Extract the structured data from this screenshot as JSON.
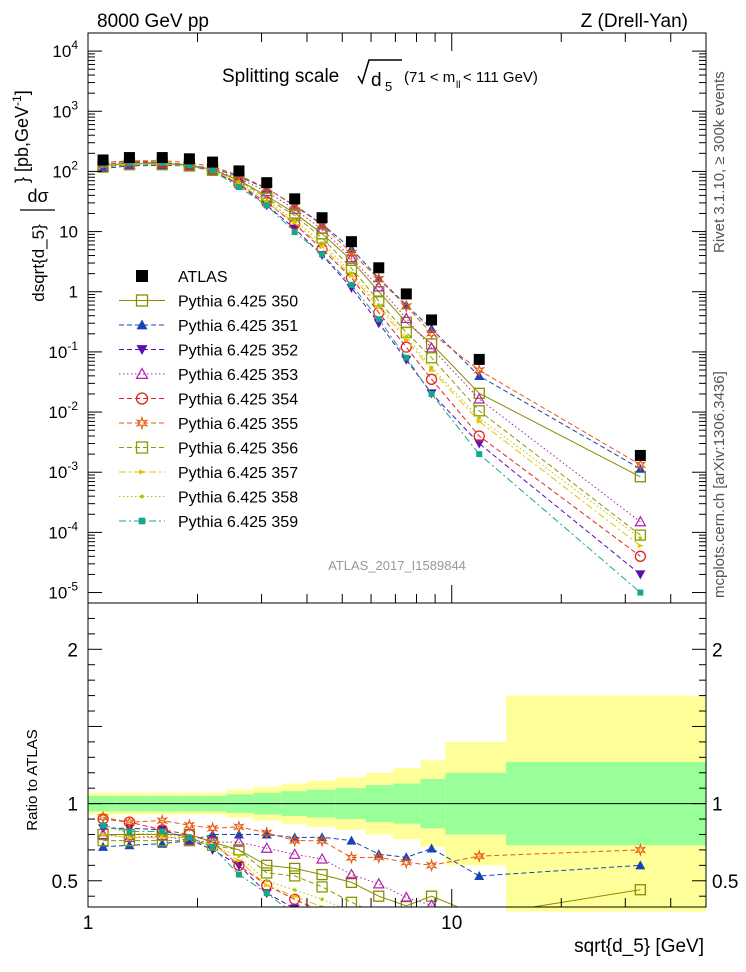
{
  "header": {
    "left": "8000 GeV pp",
    "right": "Z (Drell-Yan)"
  },
  "side_labels": {
    "rivet": "Rivet 3.1.10, ≥ 300k events",
    "mcplots": "mcplots.cern.ch [arXiv:1306.3436]"
  },
  "chart_data": {
    "type": "scatter",
    "title": "Splitting scale √d_5 (71 < m_ll < 111 GeV)",
    "title_main": "Splitting scale",
    "title_sym": "d",
    "title_sub": "5",
    "title_cut": "(71 < m",
    "title_cut_sub": "ll",
    "title_cut_end": " < 111 GeV)",
    "analysis_id": "ATLAS_2017_I1589844",
    "xlabel": "sqrt{d_5} [GeV]",
    "ylabel": "dσ/dsqrt{d_5} [pb,GeV⁻¹]",
    "ylabel_num": "dσ",
    "ylabel_den": "dsqrt{d_5}",
    "ylabel_unit": "} [pb,GeV",
    "ylabel_unit_exp": "-1",
    "ylabel_unit_end": "]",
    "ratio_ylabel": "Ratio to ATLAS",
    "xscale": "log",
    "xlim": [
      1,
      50
    ],
    "yscale": "log",
    "ylim": [
      6.7e-06,
      20000
    ],
    "ratio_ylim": [
      0.33,
      2.3
    ],
    "x_tick_labels": [
      "1",
      "10"
    ],
    "y_tick_labels": [
      "10^-5",
      "10^-4",
      "10^-3",
      "10^-2",
      "10^-1",
      "1",
      "10",
      "10^2",
      "10^3",
      "10^4"
    ],
    "ratio_tick_labels": [
      "0.5",
      "1",
      "2"
    ],
    "legend_position": "mid-left",
    "x": [
      1.1,
      1.3,
      1.6,
      1.9,
      2.2,
      2.6,
      3.1,
      3.7,
      4.4,
      5.3,
      6.3,
      7.5,
      8.8,
      11.9,
      33.0
    ],
    "bin_edges": [
      1.0,
      1.2,
      1.45,
      1.75,
      2.05,
      2.4,
      2.85,
      3.4,
      4.0,
      4.8,
      5.8,
      6.9,
      8.2,
      9.6,
      14.1,
      50.0
    ],
    "band_inner": [
      0.05,
      0.05,
      0.05,
      0.05,
      0.05,
      0.06,
      0.07,
      0.08,
      0.09,
      0.1,
      0.12,
      0.13,
      0.16,
      0.2,
      0.27
    ],
    "band_outer": [
      0.07,
      0.07,
      0.07,
      0.07,
      0.07,
      0.09,
      0.11,
      0.13,
      0.15,
      0.17,
      0.2,
      0.23,
      0.28,
      0.4,
      0.7
    ],
    "series": [
      {
        "name": "ATLAS",
        "color": "#000000",
        "marker": "square-filled",
        "dash": "none",
        "values": [
          155,
          170,
          170,
          162,
          143,
          102,
          65,
          35,
          17,
          6.8,
          2.5,
          0.92,
          0.34,
          0.075,
          0.0019
        ]
      },
      {
        "name": "Pythia 6.425 350",
        "color": "#8b8b00",
        "marker": "square-open",
        "dash": "solid",
        "values": [
          124.0,
          136.0,
          136.0,
          129.6,
          107.3,
          71.4,
          39.0,
          20.3,
          9.18,
          3.33,
          1.0,
          0.31,
          0.136,
          0.0205,
          0.00084
        ]
      },
      {
        "name": "Pythia 6.425 351",
        "color": "#1844b5",
        "marker": "triangle-up-filled",
        "dash": "dashed",
        "values": [
          111.6,
          124.1,
          125.8,
          123.1,
          114.4,
          81.6,
          52.0,
          27.3,
          13.3,
          5.17,
          1.68,
          0.6,
          0.241,
          0.0398,
          0.00114
        ]
      },
      {
        "name": "Pythia 6.425 352",
        "color": "#5a0fb0",
        "marker": "triangle-down-filled",
        "dash": "dashed",
        "values": [
          130.2,
          142.8,
          141.1,
          124.7,
          100.1,
          61.2,
          27.3,
          11.2,
          4.08,
          1.16,
          0.3,
          0.074,
          0.0204,
          0.003,
          2e-05
        ]
      },
      {
        "name": "Pythia 6.425 353",
        "color": "#b01fb0",
        "marker": "triangle-up-open",
        "dash": "dotted",
        "values": [
          124.0,
          132.6,
          134.3,
          123.1,
          107.3,
          76.5,
          46.2,
          23.5,
          10.9,
          3.67,
          1.2,
          0.36,
          0.116,
          0.0165,
          0.00015
        ]
      },
      {
        "name": "Pythia 6.425 354",
        "color": "#e0231f",
        "marker": "circle-open",
        "dash": "dashed",
        "values": [
          139.5,
          149.6,
          141.1,
          129.6,
          107.3,
          61.2,
          30.6,
          13.3,
          5.1,
          1.7,
          0.45,
          0.12,
          0.035,
          0.004,
          4e-05
        ]
      },
      {
        "name": "Pythia 6.425 355",
        "color": "#e8590c",
        "marker": "star-open",
        "dash": "dashed",
        "values": [
          141.1,
          149.6,
          151.3,
          139.3,
          120.1,
          86.7,
          52.7,
          26.6,
          12.9,
          4.42,
          1.63,
          0.57,
          0.204,
          0.0495,
          0.00133
        ]
      },
      {
        "name": "Pythia 6.425 356",
        "color": "#8b9a00",
        "marker": "square-open",
        "dash": "dashed",
        "values": [
          117.8,
          129.2,
          129.2,
          123.1,
          104.4,
          71.4,
          35.8,
          18.6,
          7.82,
          2.45,
          0.7,
          0.21,
          0.08,
          0.0105,
          9e-05
        ]
      },
      {
        "name": "Pythia 6.425 357",
        "color": "#e6c200",
        "marker": "triangle-right-filled",
        "dash": "dashdot",
        "values": [
          124.0,
          132.6,
          132.6,
          126.4,
          104.4,
          64.3,
          30.6,
          14.0,
          5.61,
          1.84,
          0.55,
          0.16,
          0.05,
          0.007,
          6e-05
        ]
      },
      {
        "name": "Pythia 6.425 358",
        "color": "#b8c400",
        "marker": "dot-filled",
        "dash": "dotted",
        "values": [
          131.8,
          137.7,
          136.0,
          126.4,
          104.4,
          67.3,
          32.5,
          15.4,
          6.46,
          2.04,
          0.6,
          0.18,
          0.055,
          0.008,
          8e-05
        ]
      },
      {
        "name": "Pythia 6.425 359",
        "color": "#14a88a",
        "marker": "square-small-filled",
        "dash": "dashdot",
        "values": [
          133.3,
          139.4,
          139.4,
          126.4,
          102.9,
          55.1,
          27.3,
          9.8,
          4.2,
          1.3,
          0.35,
          0.08,
          0.02,
          0.002,
          1e-05
        ]
      }
    ]
  }
}
